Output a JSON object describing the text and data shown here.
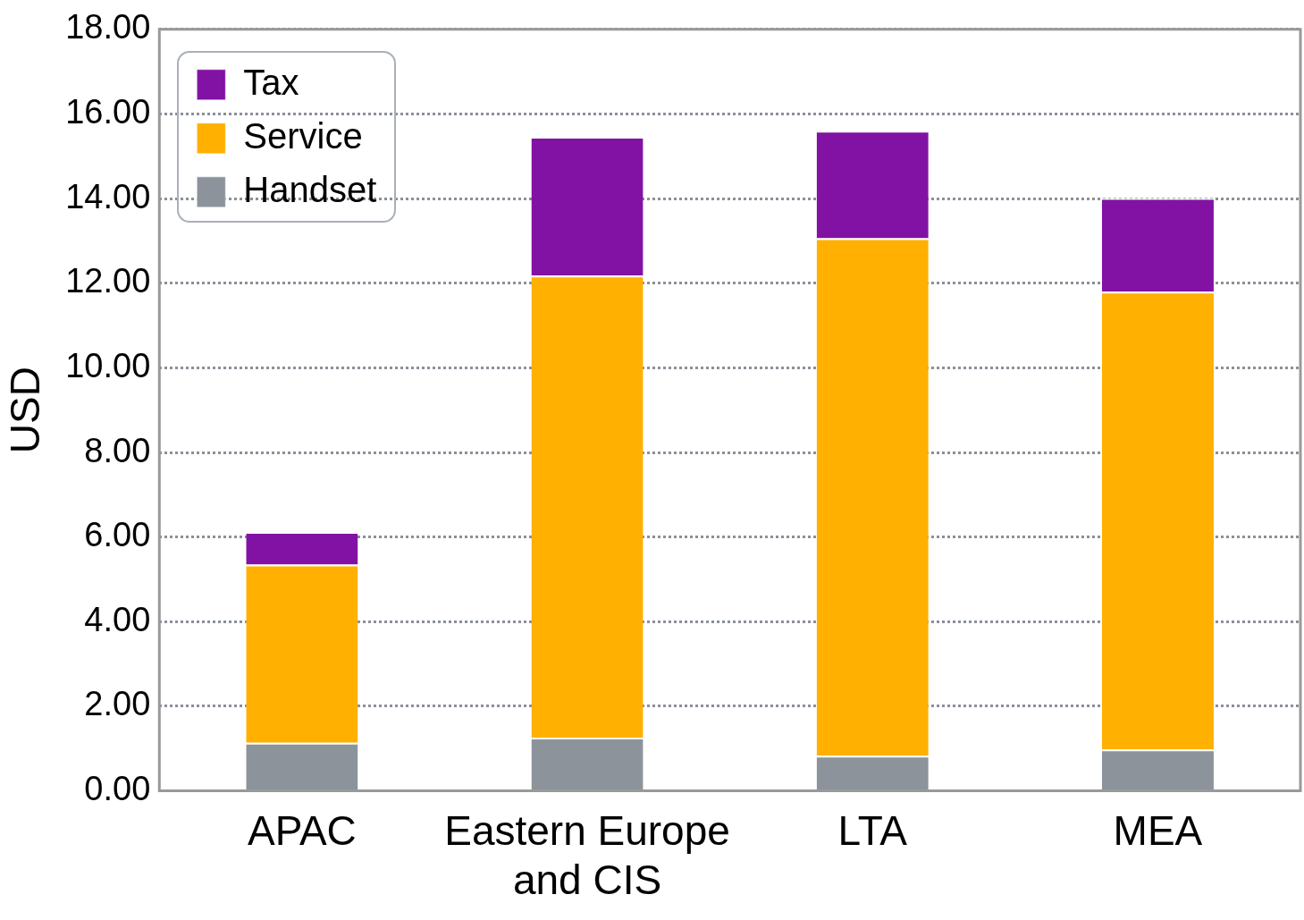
{
  "chart_data": {
    "type": "bar",
    "ylabel": "USD",
    "categories": [
      "APAC",
      "Eastern Europe and CIS",
      "LTA",
      "MEA"
    ],
    "series": [
      {
        "name": "Handset",
        "color": "#8c939b",
        "values": [
          1.14,
          1.26,
          0.83,
          0.98
        ]
      },
      {
        "name": "Service",
        "color": "#ffb000",
        "values": [
          4.21,
          10.92,
          12.23,
          10.82
        ]
      },
      {
        "name": "Tax",
        "color": "#8212a3",
        "values": [
          0.77,
          3.28,
          2.54,
          2.21
        ]
      }
    ],
    "stacked": true,
    "ylim": [
      0,
      18
    ],
    "yticks": [
      {
        "value": 0,
        "label": "0.00"
      },
      {
        "value": 2,
        "label": "2.00"
      },
      {
        "value": 4,
        "label": "4.00"
      },
      {
        "value": 6,
        "label": "6.00"
      },
      {
        "value": 8,
        "label": "8.00"
      },
      {
        "value": 10,
        "label": "10.00"
      },
      {
        "value": 12,
        "label": "12.00"
      },
      {
        "value": 14,
        "label": "14.00"
      },
      {
        "value": 16,
        "label": "16.00"
      },
      {
        "value": 18,
        "label": "18.00"
      }
    ],
    "grid": "y",
    "legend": "top left"
  }
}
